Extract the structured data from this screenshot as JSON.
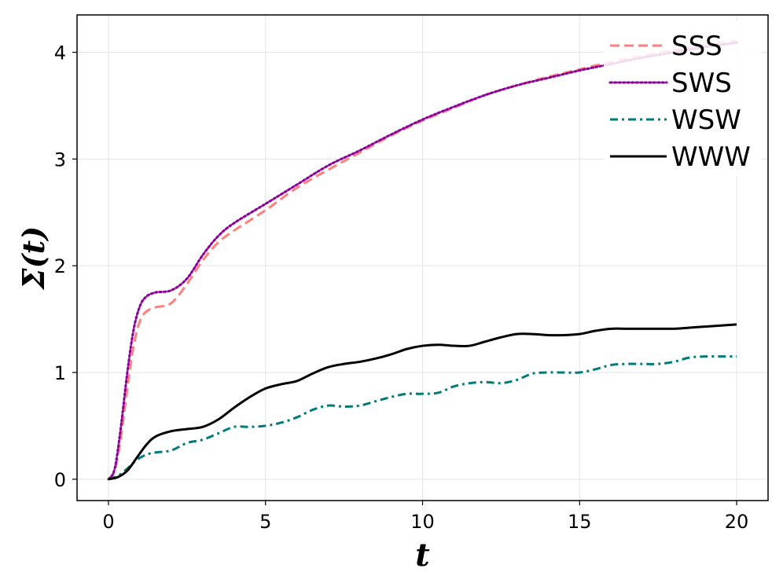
{
  "chart_data": {
    "type": "line",
    "xlabel": "t",
    "ylabel": "Σ(t)",
    "xlim": [
      -1,
      21
    ],
    "ylim": [
      -0.2,
      4.35
    ],
    "xticks": [
      0,
      5,
      10,
      15,
      20
    ],
    "yticks": [
      0,
      1,
      2,
      3,
      4
    ],
    "grid": true,
    "legend_position": "top-right",
    "series": [
      {
        "name": "SSS",
        "color": "#ff7f7f",
        "dash": "dashed",
        "x": [
          0,
          0.2,
          0.4,
          0.6,
          0.8,
          1.0,
          1.2,
          1.5,
          2.0,
          2.5,
          3.0,
          3.5,
          4.0,
          5.0,
          6.0,
          7.0,
          8.0,
          9.0,
          10.0,
          11.0,
          12.0,
          13.0,
          14.0,
          15.0,
          16.0,
          17.0,
          18.0,
          19.0,
          20.0
        ],
        "y": [
          0,
          0.08,
          0.4,
          0.85,
          1.25,
          1.48,
          1.57,
          1.61,
          1.65,
          1.83,
          2.05,
          2.22,
          2.33,
          2.52,
          2.73,
          2.9,
          3.06,
          3.22,
          3.36,
          3.48,
          3.6,
          3.69,
          3.77,
          3.84,
          3.91,
          3.97,
          4.02,
          4.07,
          4.11
        ]
      },
      {
        "name": "SWS",
        "color": "#8b0099",
        "dash": "dotted",
        "x": [
          0,
          0.2,
          0.4,
          0.6,
          0.8,
          1.0,
          1.2,
          1.5,
          2.0,
          2.5,
          3.0,
          3.5,
          4.0,
          5.0,
          6.0,
          7.0,
          8.0,
          9.0,
          10.0,
          11.0,
          12.0,
          13.0,
          14.0,
          15.0,
          16.0,
          17.0,
          18.0,
          19.0,
          20.0
        ],
        "y": [
          0,
          0.1,
          0.5,
          1.0,
          1.4,
          1.62,
          1.71,
          1.75,
          1.77,
          1.88,
          2.1,
          2.28,
          2.4,
          2.58,
          2.76,
          2.94,
          3.08,
          3.23,
          3.37,
          3.49,
          3.6,
          3.69,
          3.76,
          3.83,
          3.89,
          3.95,
          4.0,
          4.05,
          4.09
        ]
      },
      {
        "name": "WSW",
        "color": "#007b78",
        "dash": "dashdot",
        "x": [
          0,
          0.3,
          0.6,
          0.9,
          1.2,
          1.5,
          2.0,
          2.5,
          3.0,
          3.5,
          4.0,
          4.5,
          5.0,
          5.5,
          6.0,
          6.5,
          7.0,
          7.5,
          8.0,
          8.5,
          9.0,
          9.5,
          10.0,
          10.5,
          11.0,
          11.5,
          12.0,
          12.5,
          13.0,
          13.5,
          14.0,
          14.5,
          15.0,
          15.5,
          16.0,
          16.5,
          17.0,
          17.5,
          18.0,
          18.5,
          19.0,
          19.5,
          20.0
        ],
        "y": [
          0,
          0.03,
          0.1,
          0.18,
          0.23,
          0.25,
          0.27,
          0.34,
          0.37,
          0.43,
          0.49,
          0.49,
          0.5,
          0.53,
          0.58,
          0.65,
          0.69,
          0.68,
          0.69,
          0.73,
          0.77,
          0.8,
          0.8,
          0.81,
          0.87,
          0.9,
          0.91,
          0.9,
          0.93,
          0.99,
          1.0,
          1.0,
          1.0,
          1.03,
          1.07,
          1.08,
          1.08,
          1.08,
          1.1,
          1.14,
          1.15,
          1.15,
          1.15
        ]
      },
      {
        "name": "WWW",
        "color": "#000000",
        "dash": "solid",
        "x": [
          0,
          0.3,
          0.6,
          0.9,
          1.2,
          1.5,
          2.0,
          2.5,
          3.0,
          3.5,
          4.0,
          4.5,
          5.0,
          5.5,
          6.0,
          6.5,
          7.0,
          7.5,
          8.0,
          8.5,
          9.0,
          9.5,
          10.0,
          10.5,
          11.0,
          11.5,
          12.0,
          12.5,
          13.0,
          13.5,
          14.0,
          14.5,
          15.0,
          15.5,
          16.0,
          16.5,
          17.0,
          17.5,
          18.0,
          18.5,
          19.0,
          19.5,
          20.0
        ],
        "y": [
          0,
          0.02,
          0.08,
          0.2,
          0.32,
          0.4,
          0.45,
          0.47,
          0.49,
          0.56,
          0.67,
          0.77,
          0.85,
          0.89,
          0.92,
          0.99,
          1.05,
          1.08,
          1.1,
          1.13,
          1.17,
          1.22,
          1.25,
          1.26,
          1.25,
          1.25,
          1.29,
          1.33,
          1.36,
          1.36,
          1.35,
          1.35,
          1.36,
          1.39,
          1.41,
          1.41,
          1.41,
          1.41,
          1.41,
          1.42,
          1.43,
          1.44,
          1.45
        ]
      }
    ]
  }
}
